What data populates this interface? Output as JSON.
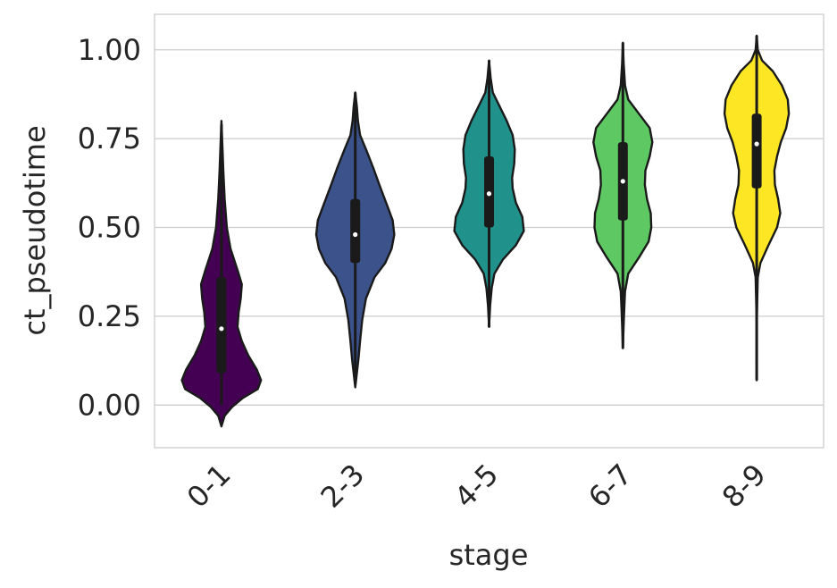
{
  "chart_data": {
    "type": "violin",
    "xlabel": "stage",
    "ylabel": "ct_pseudotime",
    "ylim": [
      -0.12,
      1.1
    ],
    "yticks": [
      0.0,
      0.25,
      0.5,
      0.75,
      1.0
    ],
    "ytick_labels": [
      "0.00",
      "0.25",
      "0.50",
      "0.75",
      "1.00"
    ],
    "grid": true,
    "categories": [
      "0-1",
      "2-3",
      "4-5",
      "6-7",
      "8-9"
    ],
    "colors": [
      "#440154",
      "#3b528b",
      "#21918c",
      "#5ec962",
      "#fde725"
    ],
    "violins": [
      {
        "category": "0-1",
        "min": 0.0,
        "q1": 0.09,
        "median": 0.215,
        "q3": 0.36,
        "max": 0.79,
        "profile": [
          [
            -0.06,
            0.0
          ],
          [
            -0.03,
            0.06
          ],
          [
            -0.005,
            0.2
          ],
          [
            0.02,
            0.4
          ],
          [
            0.045,
            0.68
          ],
          [
            0.07,
            0.74
          ],
          [
            0.1,
            0.66
          ],
          [
            0.14,
            0.5
          ],
          [
            0.18,
            0.38
          ],
          [
            0.22,
            0.3
          ],
          [
            0.26,
            0.32
          ],
          [
            0.3,
            0.36
          ],
          [
            0.34,
            0.38
          ],
          [
            0.38,
            0.3
          ],
          [
            0.44,
            0.17
          ],
          [
            0.5,
            0.1
          ],
          [
            0.58,
            0.06
          ],
          [
            0.66,
            0.035
          ],
          [
            0.74,
            0.015
          ],
          [
            0.8,
            0.0
          ]
        ]
      },
      {
        "category": "2-3",
        "min": 0.06,
        "q1": 0.4,
        "median": 0.48,
        "q3": 0.58,
        "max": 0.88,
        "profile": [
          [
            0.05,
            0.0
          ],
          [
            0.09,
            0.03
          ],
          [
            0.13,
            0.06
          ],
          [
            0.18,
            0.09
          ],
          [
            0.24,
            0.13
          ],
          [
            0.3,
            0.2
          ],
          [
            0.36,
            0.36
          ],
          [
            0.4,
            0.56
          ],
          [
            0.44,
            0.68
          ],
          [
            0.48,
            0.73
          ],
          [
            0.52,
            0.7
          ],
          [
            0.56,
            0.6
          ],
          [
            0.62,
            0.45
          ],
          [
            0.67,
            0.33
          ],
          [
            0.72,
            0.2
          ],
          [
            0.76,
            0.09
          ],
          [
            0.8,
            0.05
          ],
          [
            0.84,
            0.03
          ],
          [
            0.88,
            0.0
          ]
        ]
      },
      {
        "category": "4-5",
        "min": 0.22,
        "q1": 0.5,
        "median": 0.595,
        "q3": 0.7,
        "max": 0.97,
        "profile": [
          [
            0.22,
            0.0
          ],
          [
            0.28,
            0.02
          ],
          [
            0.33,
            0.05
          ],
          [
            0.37,
            0.1
          ],
          [
            0.41,
            0.26
          ],
          [
            0.45,
            0.5
          ],
          [
            0.49,
            0.65
          ],
          [
            0.53,
            0.62
          ],
          [
            0.57,
            0.5
          ],
          [
            0.61,
            0.44
          ],
          [
            0.64,
            0.43
          ],
          [
            0.68,
            0.47
          ],
          [
            0.72,
            0.48
          ],
          [
            0.76,
            0.44
          ],
          [
            0.8,
            0.33
          ],
          [
            0.84,
            0.2
          ],
          [
            0.88,
            0.07
          ],
          [
            0.92,
            0.03
          ],
          [
            0.97,
            0.0
          ]
        ]
      },
      {
        "category": "6-7",
        "min": 0.16,
        "q1": 0.52,
        "median": 0.63,
        "q3": 0.74,
        "max": 1.02,
        "profile": [
          [
            0.16,
            0.0
          ],
          [
            0.25,
            0.02
          ],
          [
            0.32,
            0.04
          ],
          [
            0.37,
            0.1
          ],
          [
            0.42,
            0.32
          ],
          [
            0.46,
            0.48
          ],
          [
            0.5,
            0.53
          ],
          [
            0.54,
            0.52
          ],
          [
            0.58,
            0.45
          ],
          [
            0.62,
            0.41
          ],
          [
            0.66,
            0.42
          ],
          [
            0.7,
            0.5
          ],
          [
            0.74,
            0.55
          ],
          [
            0.78,
            0.5
          ],
          [
            0.82,
            0.3
          ],
          [
            0.86,
            0.1
          ],
          [
            0.9,
            0.04
          ],
          [
            0.96,
            0.015
          ],
          [
            1.02,
            0.0
          ]
        ]
      },
      {
        "category": "8-9",
        "min": 0.07,
        "q1": 0.61,
        "median": 0.735,
        "q3": 0.82,
        "max": 1.04,
        "profile": [
          [
            0.07,
            0.0
          ],
          [
            0.25,
            0.004
          ],
          [
            0.36,
            0.02
          ],
          [
            0.4,
            0.07
          ],
          [
            0.45,
            0.22
          ],
          [
            0.5,
            0.38
          ],
          [
            0.54,
            0.44
          ],
          [
            0.58,
            0.4
          ],
          [
            0.62,
            0.34
          ],
          [
            0.66,
            0.33
          ],
          [
            0.7,
            0.38
          ],
          [
            0.74,
            0.45
          ],
          [
            0.78,
            0.55
          ],
          [
            0.82,
            0.6
          ],
          [
            0.86,
            0.58
          ],
          [
            0.9,
            0.47
          ],
          [
            0.94,
            0.3
          ],
          [
            0.97,
            0.1
          ],
          [
            1.0,
            0.02
          ],
          [
            1.04,
            0.0
          ]
        ]
      }
    ]
  }
}
